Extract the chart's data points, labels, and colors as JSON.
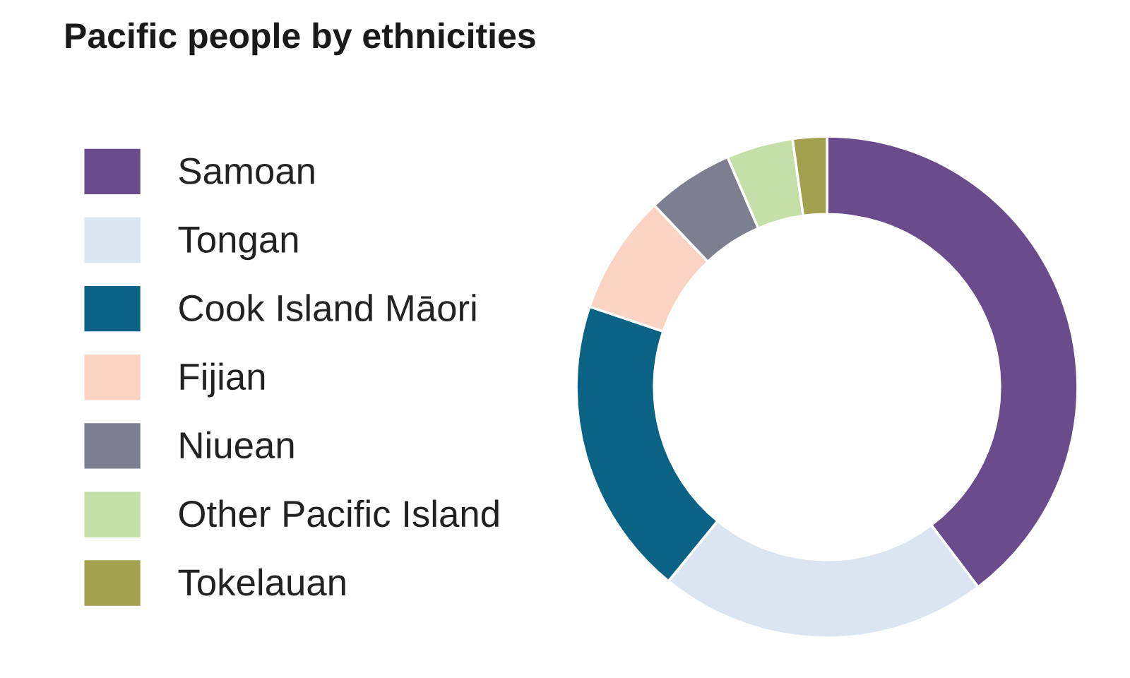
{
  "chart_data": {
    "type": "donut",
    "title": "Pacific people by ethnicities",
    "categories": [
      "Samoan",
      "Tongan",
      "Cook Island Māori",
      "Fijian",
      "Niuean",
      "Other Pacific Island",
      "Tokelauan"
    ],
    "values": [
      39.7,
      21.2,
      19.3,
      7.7,
      5.6,
      4.3,
      2.2
    ],
    "colors": [
      "#6a4c8c",
      "#dbe5f2",
      "#0a6384",
      "#fbd3c2",
      "#7c7f8f",
      "#c4dfa8",
      "#a3a050"
    ],
    "legend": "left"
  }
}
